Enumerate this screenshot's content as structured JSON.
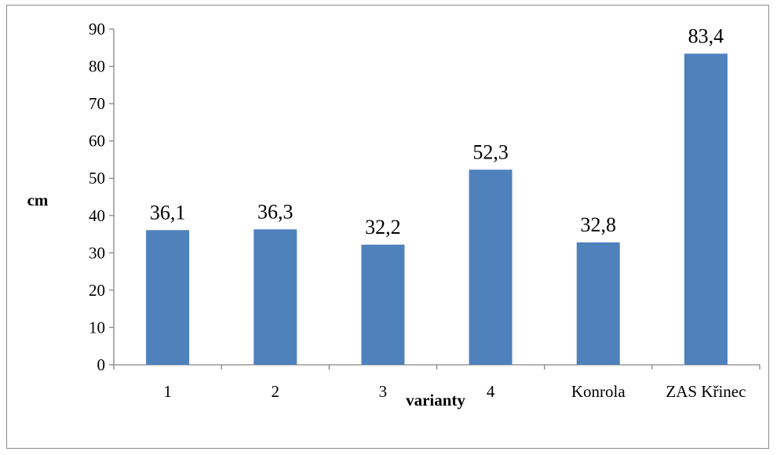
{
  "chart_data": {
    "type": "bar",
    "categories": [
      "1",
      "2",
      "3",
      "4",
      "Konrola",
      "ZAS Křinec"
    ],
    "values": [
      36.1,
      36.3,
      32.2,
      52.3,
      32.8,
      83.4
    ],
    "data_labels": [
      "36,1",
      "36,3",
      "32,2",
      "52,3",
      "32,8",
      "83,4"
    ],
    "title": "",
    "xlabel": "varianty",
    "ylabel": "cm",
    "ylim": [
      0,
      90
    ],
    "yticks": [
      0,
      10,
      20,
      30,
      40,
      50,
      60,
      70,
      80,
      90
    ],
    "grid": false,
    "legend": "none",
    "bar_color": "#4f81bd"
  }
}
